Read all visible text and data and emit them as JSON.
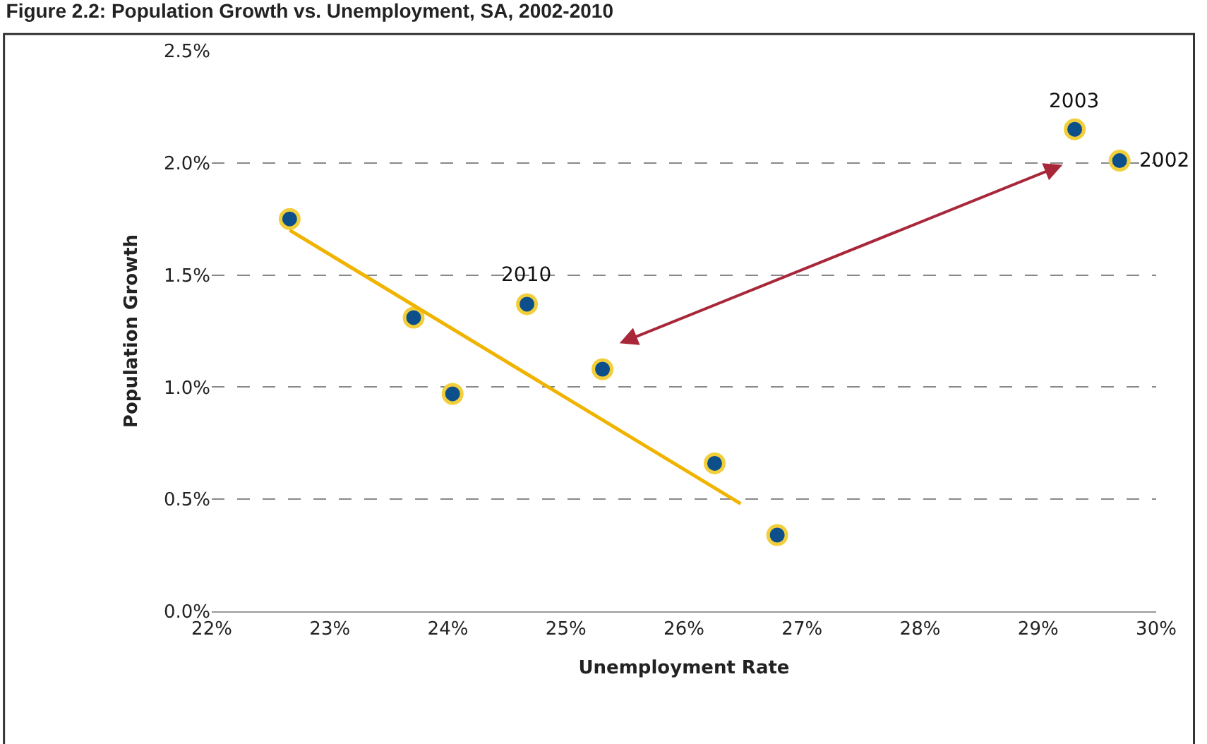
{
  "chart_data": {
    "type": "scatter",
    "title": "Figure 2.2: Population Growth vs. Unemployment, SA, 2002-2010",
    "xlabel": "Unemployment Rate",
    "ylabel": "Population Growth",
    "x": [
      22.66,
      23.71,
      24.04,
      24.67,
      25.31,
      26.26,
      26.79,
      29.31,
      29.69
    ],
    "series": [
      {
        "marker": "circle",
        "color": "#0d4f8b",
        "values": [
          1.75,
          1.31,
          0.97,
          1.37,
          1.08,
          0.66,
          0.34,
          2.15,
          2.01
        ]
      },
      {
        "type": "line",
        "color": "#f0b400",
        "x": [
          22.66,
          26.48
        ],
        "values": [
          1.7,
          0.48
        ],
        "line_style": "solid"
      }
    ],
    "annotations": [
      {
        "text": "2010",
        "x": 24.67,
        "y": 1.37
      },
      {
        "text": "2003",
        "x": 29.31,
        "y": 2.15
      },
      {
        "text": "2002",
        "x": 29.69,
        "y": 2.01
      }
    ],
    "xlim": [
      22,
      30
    ],
    "xticks": [
      {
        "value": 22,
        "label": "22%"
      },
      {
        "value": 23,
        "label": "23%"
      },
      {
        "value": 24,
        "label": "24%"
      },
      {
        "value": 25,
        "label": "25%"
      },
      {
        "value": 26,
        "label": "26%"
      },
      {
        "value": 27,
        "label": "27%"
      },
      {
        "value": 28,
        "label": "28%"
      },
      {
        "value": 29,
        "label": "29%"
      },
      {
        "value": 30,
        "label": "30%"
      }
    ],
    "ylim": [
      0,
      2.5
    ],
    "yticks": [
      {
        "value": 0,
        "label": "0.0%"
      },
      {
        "value": 0.5,
        "label": "0.5%"
      },
      {
        "value": 1,
        "label": "1.0%"
      },
      {
        "value": 1.5,
        "label": "1.5%"
      },
      {
        "value": 2,
        "label": "2.0%"
      },
      {
        "value": 2.5,
        "label": "2.5%"
      }
    ],
    "grid": "y"
  }
}
